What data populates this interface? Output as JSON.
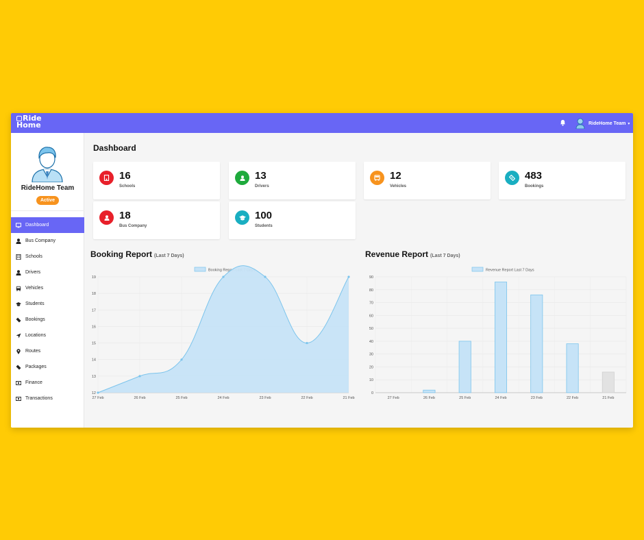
{
  "app": {
    "logo_line1": "Ride",
    "logo_line2": "Home"
  },
  "header": {
    "user_name": "RideHome Team"
  },
  "profile": {
    "name": "RideHome Team",
    "status": "Active"
  },
  "nav": [
    {
      "label": "Dashboard",
      "icon": "monitor-icon"
    },
    {
      "label": "Bus Company",
      "icon": "user-icon"
    },
    {
      "label": "Schools",
      "icon": "building-icon"
    },
    {
      "label": "Drivers",
      "icon": "user-icon"
    },
    {
      "label": "Vehicles",
      "icon": "bus-icon"
    },
    {
      "label": "Students",
      "icon": "graduation-cap-icon"
    },
    {
      "label": "Bookings",
      "icon": "ticket-icon"
    },
    {
      "label": "Locations",
      "icon": "location-arrow-icon"
    },
    {
      "label": "Routes",
      "icon": "map-pin-icon"
    },
    {
      "label": "Packages",
      "icon": "ticket-icon"
    },
    {
      "label": "Finance",
      "icon": "money-icon"
    },
    {
      "label": "Transactions",
      "icon": "money-icon"
    }
  ],
  "page": {
    "title": "Dashboard"
  },
  "stats": [
    {
      "value": "16",
      "label": "Schools",
      "color": "#e8202a",
      "icon": "building-icon"
    },
    {
      "value": "13",
      "label": "Drivers",
      "color": "#1eaa3c",
      "icon": "user-icon"
    },
    {
      "value": "12",
      "label": "Vehicles",
      "color": "#f7931e",
      "icon": "bus-icon"
    },
    {
      "value": "483",
      "label": "Bookings",
      "color": "#19aec1",
      "icon": "ticket-icon"
    },
    {
      "value": "18",
      "label": "Bus Company",
      "color": "#e8202a",
      "icon": "user-icon"
    },
    {
      "value": "100",
      "label": "Students",
      "color": "#19aec1",
      "icon": "graduation-cap-icon"
    }
  ],
  "booking_section": {
    "title": "Booking Report",
    "subtitle": "(Last 7 Days)"
  },
  "revenue_section": {
    "title": "Revenue Report",
    "subtitle": "(Last 7 Days)"
  },
  "chart_data": [
    {
      "type": "area",
      "legend": "Booking Report Last 7 Days",
      "categories": [
        "27 Feb",
        "26 Feb",
        "25 Feb",
        "24 Feb",
        "23 Feb",
        "22 Feb",
        "21 Feb"
      ],
      "series": [
        {
          "name": "Booking Report Last 7 Days",
          "values": [
            12,
            13,
            14,
            19,
            19,
            15,
            19
          ]
        }
      ],
      "ylim": [
        12,
        19
      ],
      "yticks": [
        12,
        13,
        14,
        15,
        16,
        17,
        18,
        19
      ],
      "grid": true,
      "legend_position": "top",
      "color": "#c6e3f7",
      "stroke": "#7cc4ec"
    },
    {
      "type": "bar",
      "legend": "Revenue Report Last 7 Days",
      "categories": [
        "27 Feb",
        "26 Feb",
        "25 Feb",
        "24 Feb",
        "23 Feb",
        "22 Feb",
        "21 Feb"
      ],
      "series": [
        {
          "name": "Revenue Report Last 7 Days",
          "values": [
            0,
            2,
            40,
            86,
            76,
            38,
            16
          ]
        }
      ],
      "ylim": [
        0,
        90
      ],
      "yticks": [
        0,
        10,
        20,
        30,
        40,
        50,
        60,
        70,
        80,
        90
      ],
      "grid": true,
      "legend_position": "top",
      "color": "#c6e3f7",
      "stroke": "#7cc4ec",
      "last_bar_color": "#e2e2e2"
    }
  ]
}
